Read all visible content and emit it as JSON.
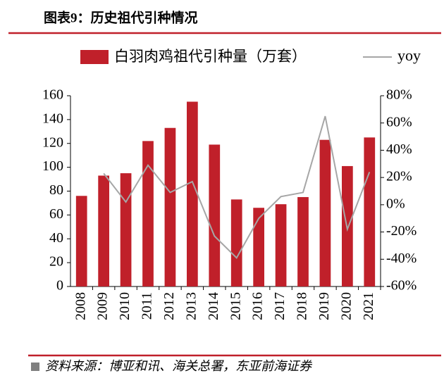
{
  "chart_data": {
    "type": "bar",
    "title": "图表9：历史祖代引种情况",
    "source": "资料来源：博亚和讯、海关总署，东亚前海证券",
    "categories": [
      "2008",
      "2009",
      "2010",
      "2011",
      "2012",
      "2013",
      "2014",
      "2015",
      "2016",
      "2017",
      "2018",
      "2019",
      "2020",
      "2021"
    ],
    "series": [
      {
        "name": "白羽肉鸡祖代引种量（万套）",
        "type": "bar",
        "color": "#c0202a",
        "values": [
          76,
          93,
          95,
          122,
          133,
          155,
          119,
          73,
          66,
          69,
          75,
          123,
          101,
          125
        ]
      },
      {
        "name": "yoy",
        "type": "line",
        "axis": "y2",
        "color": "#a6a6a6",
        "values": [
          null,
          23,
          2,
          29,
          9,
          17,
          -23,
          -39,
          -10,
          6,
          9,
          65,
          -18,
          24
        ]
      }
    ],
    "ylim": [
      0,
      160
    ],
    "yticks": [
      0,
      20,
      40,
      60,
      80,
      100,
      120,
      140,
      160
    ],
    "y2lim": [
      -60,
      80
    ],
    "y2ticks": [
      {
        "value": -60,
        "label": "-60%"
      },
      {
        "value": -40,
        "label": "-40%"
      },
      {
        "value": -20,
        "label": "-20%"
      },
      {
        "value": 0,
        "label": "0%"
      },
      {
        "value": 20,
        "label": "20%"
      },
      {
        "value": 40,
        "label": "40%"
      },
      {
        "value": 60,
        "label": "60%"
      },
      {
        "value": 80,
        "label": "80%"
      }
    ],
    "grid": false
  }
}
